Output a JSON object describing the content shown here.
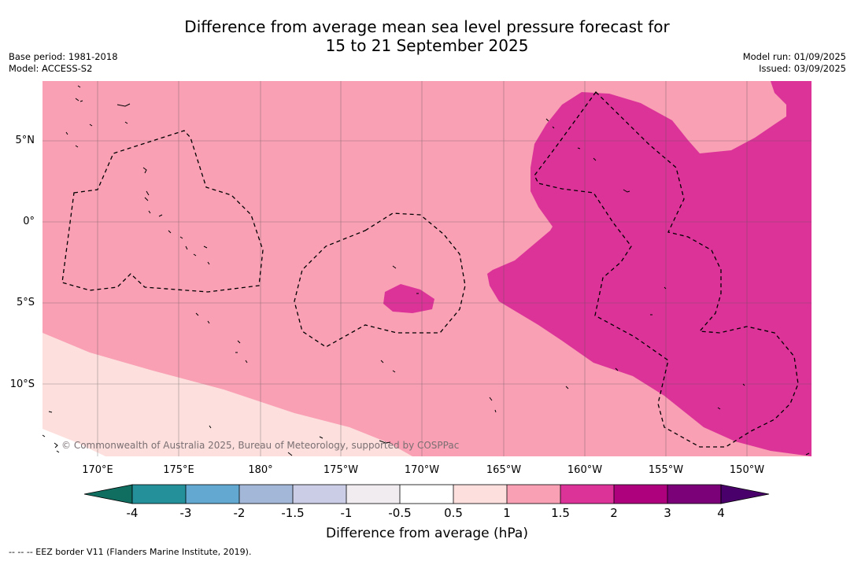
{
  "title_line1": "Difference from average mean sea level pressure forecast for",
  "title_line2": "15 to 21 September 2025",
  "base_period": "Base period: 1981-2018",
  "model": "Model: ACCESS-S2",
  "model_run": "Model run: 01/09/2025",
  "issued": "Issued: 03/09/2025",
  "lat_labels": [
    "5°N",
    "0°",
    "5°S",
    "10°S"
  ],
  "lon_labels": [
    "170°E",
    "175°E",
    "180°",
    "175°W",
    "170°W",
    "165°W",
    "160°W",
    "155°W",
    "150°W"
  ],
  "copyright": "© Commonwealth of Australia 2025, Bureau of Meteorology, supported by COSPPac",
  "colorbar": {
    "label": "Difference from average (hPa)",
    "ticks": [
      "-4",
      "-3",
      "-2",
      "-1.5",
      "-1",
      "-0.5",
      "0.5",
      "1",
      "1.5",
      "2",
      "3",
      "4"
    ],
    "colors": {
      "below_-4": "#0f6e60",
      "-4_-3": "#23909a",
      "-3_-2": "#62a8d1",
      "-2_-1.5": "#a3b7d9",
      "-1.5_-1": "#cbcde6",
      "-1_-0.5": "#f0ecf0",
      "-0.5_0.5": "#ffffff",
      "0.5_1": "#fde0de",
      "1_1.5": "#f9a0b4",
      "1.5_2": "#dc3399",
      "2_3": "#ad017e",
      "3_4": "#7a0177",
      "above_4": "#49006a"
    }
  },
  "footnote": "-- -- -- EEZ border V11 (Flanders Marine Institute, 2019)."
}
